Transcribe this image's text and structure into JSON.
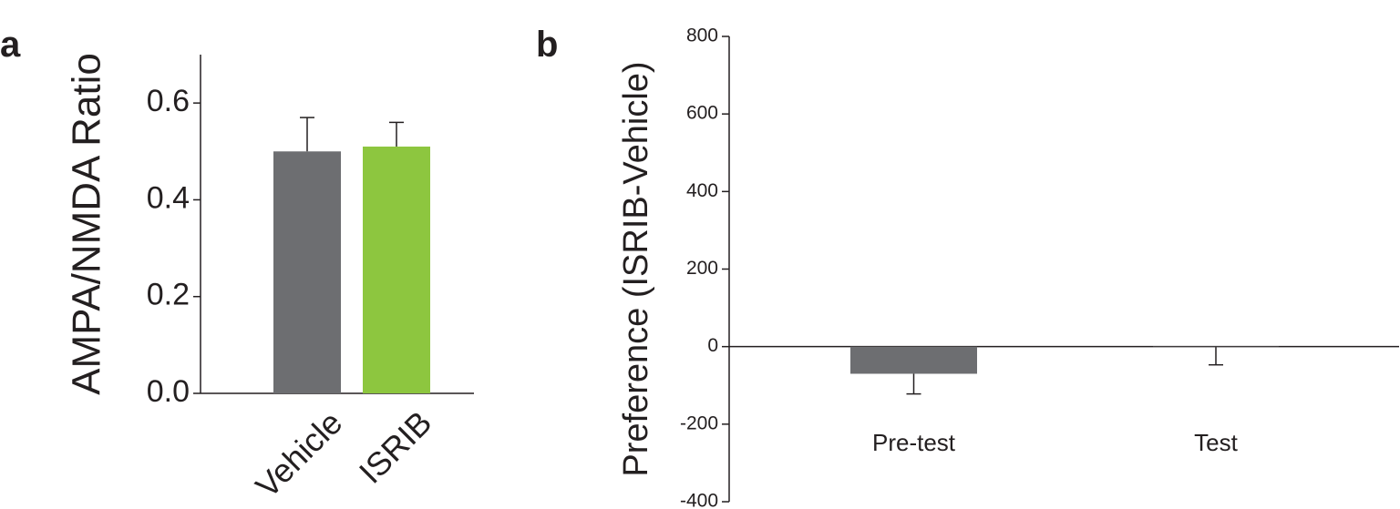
{
  "chart_data": [
    {
      "type": "bar",
      "panel": "a",
      "y_label": "AMPA/NMDA Ratio",
      "categories": [
        "Vehicle",
        "ISRIB"
      ],
      "values": [
        0.5,
        0.51
      ],
      "errors": [
        0.07,
        0.05
      ],
      "colors": [
        "#6d6e71",
        "#8dc63f"
      ],
      "error_direction": "up",
      "ylim": [
        0,
        0.7
      ],
      "yticks": [
        {
          "value": 0,
          "label": "0.0"
        },
        0.2,
        0.4,
        0.6
      ]
    },
    {
      "type": "bar",
      "panel": "b",
      "y_label": "Preference (ISRIB-Vehicle)",
      "categories": [
        "Pre-test",
        "Test"
      ],
      "values": [
        -70,
        0
      ],
      "errors": [
        52,
        47
      ],
      "colors": [
        "#6d6e71",
        "#6d6e71"
      ],
      "error_direction": "down",
      "ylim": [
        -400,
        800
      ],
      "yticks": [
        -400,
        -200,
        0,
        200,
        400,
        600,
        800
      ]
    }
  ]
}
